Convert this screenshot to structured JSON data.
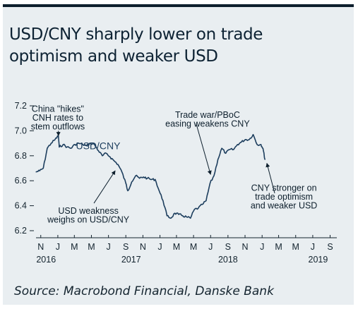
{
  "title_lines": [
    "USD/CNY sharply lower on trade",
    "optimism and weaker USD"
  ],
  "source": "Source: Macrobond Financial, Danske Bank",
  "colors": {
    "line": "#1d3e5e",
    "border": "#0d1f2d",
    "background": "#e9eef1"
  },
  "chart_data": {
    "type": "line",
    "title": "USD/CNY sharply lower on trade optimism and weaker USD",
    "ylabel": "",
    "xlabel": "",
    "ylim": [
      6.2,
      7.2
    ],
    "yticks": [
      6.2,
      6.4,
      6.6,
      6.8,
      7.0,
      7.2
    ],
    "yticklabels": [
      "6.2",
      "6.4",
      "6.6",
      "6.8",
      "7.0",
      "7.2"
    ],
    "xlim": [
      "2016-10-15",
      "2019-09-25"
    ],
    "month_ticks": [
      {
        "date": "2016-11-01",
        "label": "N"
      },
      {
        "date": "2017-01-01",
        "label": "J"
      },
      {
        "date": "2017-03-01",
        "label": "M"
      },
      {
        "date": "2017-05-01",
        "label": "M"
      },
      {
        "date": "2017-07-01",
        "label": "J"
      },
      {
        "date": "2017-09-01",
        "label": "S"
      },
      {
        "date": "2017-11-01",
        "label": "N"
      },
      {
        "date": "2018-01-01",
        "label": "J"
      },
      {
        "date": "2018-03-01",
        "label": "M"
      },
      {
        "date": "2018-05-01",
        "label": "M"
      },
      {
        "date": "2018-07-01",
        "label": "J"
      },
      {
        "date": "2018-09-01",
        "label": "S"
      },
      {
        "date": "2018-11-01",
        "label": "N"
      },
      {
        "date": "2019-01-01",
        "label": "J"
      },
      {
        "date": "2019-03-01",
        "label": "M"
      },
      {
        "date": "2019-05-01",
        "label": "M"
      },
      {
        "date": "2019-07-01",
        "label": "J"
      },
      {
        "date": "2019-09-01",
        "label": "S"
      }
    ],
    "year_labels": [
      {
        "date": "2016-11-20",
        "label": "2016"
      },
      {
        "date": "2017-09-20",
        "label": "2017"
      },
      {
        "date": "2018-09-01",
        "label": "2018"
      },
      {
        "date": "2019-07-20",
        "label": "2019"
      }
    ],
    "series": [
      {
        "name": "USD/CNY",
        "points": [
          [
            "2016-10-15",
            6.67
          ],
          [
            "2016-10-28",
            6.68
          ],
          [
            "2016-11-10",
            6.7
          ],
          [
            "2016-11-24",
            6.86
          ],
          [
            "2016-12-08",
            6.9
          ],
          [
            "2016-12-22",
            6.93
          ],
          [
            "2017-01-03",
            6.96
          ],
          [
            "2017-01-06",
            6.87
          ],
          [
            "2017-01-20",
            6.89
          ],
          [
            "2017-02-03",
            6.87
          ],
          [
            "2017-02-17",
            6.86
          ],
          [
            "2017-03-03",
            6.89
          ],
          [
            "2017-03-17",
            6.9
          ],
          [
            "2017-03-31",
            6.89
          ],
          [
            "2017-04-14",
            6.88
          ],
          [
            "2017-04-28",
            6.9
          ],
          [
            "2017-05-12",
            6.89
          ],
          [
            "2017-05-26",
            6.84
          ],
          [
            "2017-06-09",
            6.8
          ],
          [
            "2017-06-23",
            6.82
          ],
          [
            "2017-07-07",
            6.79
          ],
          [
            "2017-07-21",
            6.76
          ],
          [
            "2017-08-04",
            6.73
          ],
          [
            "2017-08-18",
            6.67
          ],
          [
            "2017-09-01",
            6.58
          ],
          [
            "2017-09-08",
            6.52
          ],
          [
            "2017-09-22",
            6.59
          ],
          [
            "2017-10-06",
            6.64
          ],
          [
            "2017-10-20",
            6.62
          ],
          [
            "2017-11-03",
            6.63
          ],
          [
            "2017-11-17",
            6.62
          ],
          [
            "2017-12-01",
            6.61
          ],
          [
            "2017-12-15",
            6.61
          ],
          [
            "2017-12-29",
            6.52
          ],
          [
            "2018-01-12",
            6.44
          ],
          [
            "2018-01-26",
            6.32
          ],
          [
            "2018-02-09",
            6.3
          ],
          [
            "2018-02-23",
            6.34
          ],
          [
            "2018-03-09",
            6.33
          ],
          [
            "2018-03-23",
            6.32
          ],
          [
            "2018-04-06",
            6.31
          ],
          [
            "2018-04-20",
            6.3
          ],
          [
            "2018-05-04",
            6.37
          ],
          [
            "2018-05-18",
            6.38
          ],
          [
            "2018-06-01",
            6.41
          ],
          [
            "2018-06-15",
            6.44
          ],
          [
            "2018-06-29",
            6.58
          ],
          [
            "2018-07-13",
            6.64
          ],
          [
            "2018-07-27",
            6.77
          ],
          [
            "2018-08-10",
            6.86
          ],
          [
            "2018-08-24",
            6.82
          ],
          [
            "2018-09-07",
            6.85
          ],
          [
            "2018-09-21",
            6.85
          ],
          [
            "2018-10-05",
            6.89
          ],
          [
            "2018-10-19",
            6.91
          ],
          [
            "2018-11-02",
            6.93
          ],
          [
            "2018-11-16",
            6.93
          ],
          [
            "2018-11-30",
            6.97
          ],
          [
            "2018-12-14",
            6.89
          ],
          [
            "2018-12-28",
            6.89
          ],
          [
            "2019-01-04",
            6.86
          ],
          [
            "2019-01-11",
            6.77
          ]
        ]
      }
    ],
    "series_label": {
      "text": "USD/CNY",
      "date": "2017-05-25",
      "value": 6.88
    },
    "annotations": [
      {
        "lines": [
          "China \"hikes\"",
          "CNH rates to",
          "stem outflows"
        ],
        "label_date": "2017-01-01",
        "label_value": 7.08,
        "arrow_from": [
          "2017-01-03",
          7.0
        ],
        "arrow_to": [
          "2017-01-03",
          6.96
        ]
      },
      {
        "lines": [
          "Trade war/PBoC",
          "easing weakens CNY"
        ],
        "label_date": "2018-06-20",
        "label_value": 7.07,
        "arrow_from": [
          "2018-05-10",
          7.06
        ],
        "arrow_to": [
          "2018-07-01",
          6.65
        ]
      },
      {
        "lines": [
          "USD weakness",
          "weighs on USD/CNY"
        ],
        "label_date": "2017-04-20",
        "label_value": 6.3,
        "arrow_from": [
          "2017-05-10",
          6.42
        ],
        "arrow_to": [
          "2017-07-25",
          6.68
        ]
      },
      {
        "lines": [
          "CNY stronger on",
          "trade optimism",
          "and weaker USD"
        ],
        "label_date": "2019-03-20",
        "label_value": 6.45,
        "arrow_from": [
          "2019-02-15",
          6.5
        ],
        "arrow_to": [
          "2019-01-18",
          6.74
        ]
      }
    ]
  }
}
